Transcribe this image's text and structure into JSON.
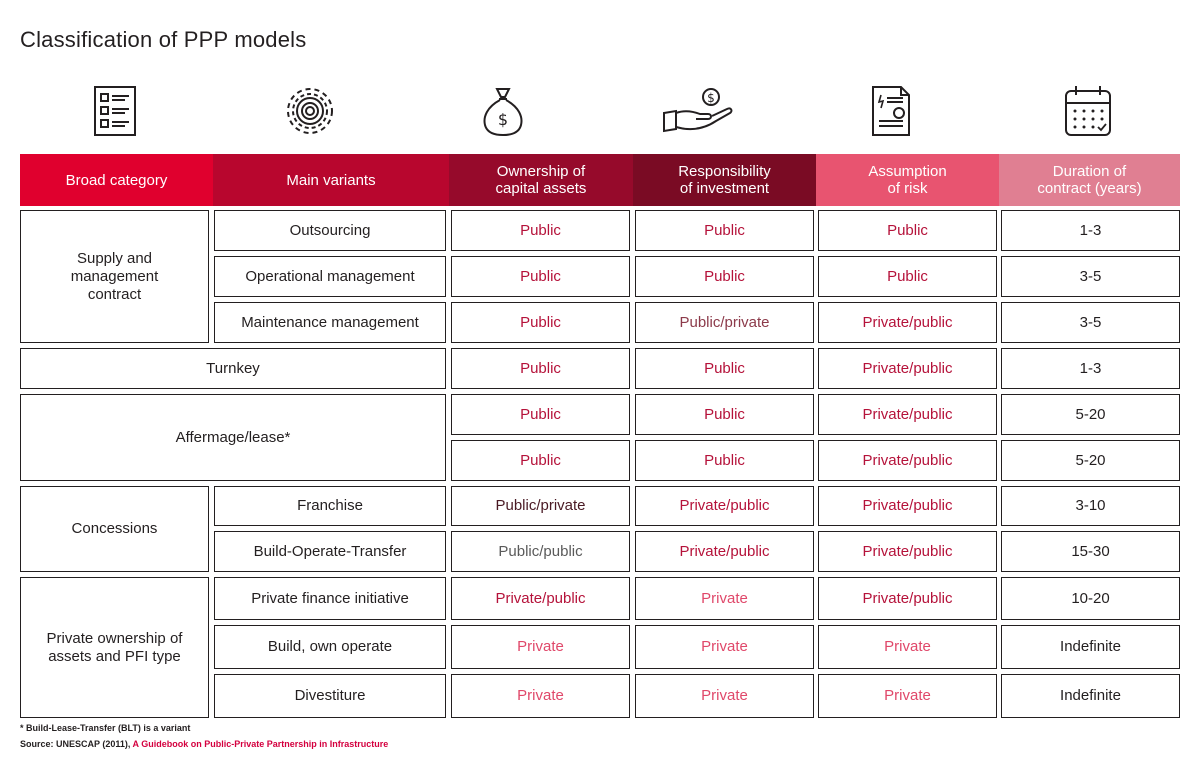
{
  "title": "Classification of PPP models",
  "chart_data": {
    "type": "table",
    "title": "Classification of PPP models",
    "columns": [
      {
        "label": "Broad category",
        "color": "#e0002e"
      },
      {
        "label": "Main variants",
        "color": "#b8062e"
      },
      {
        "label": "Ownership of\ncapital assets",
        "color": "#960a2b"
      },
      {
        "label": "Responsibility\nof investment",
        "color": "#7a0b24"
      },
      {
        "label": "Assumption\nof risk",
        "color": "#e85470"
      },
      {
        "label": "Duration of\ncontract (years)",
        "color": "#e07f92"
      }
    ],
    "icons": [
      "checklist-icon",
      "gear-icon",
      "money-bag-icon",
      "hand-dollar-icon",
      "invoice-icon",
      "calendar-icon"
    ],
    "categories": [
      "Supply and\nmanagement\ncontract",
      "Turnkey",
      "Affermage/lease*",
      "Concessions",
      "Private ownership of\nassets and PFI type"
    ],
    "rows": [
      {
        "variant": "Outsourcing",
        "ownership": "Public",
        "investment": "Public",
        "risk": "Public",
        "duration": "1-3"
      },
      {
        "variant": "Operational management",
        "ownership": "Public",
        "investment": "Public",
        "risk": "Public",
        "duration": "3-5"
      },
      {
        "variant": "Maintenance management",
        "ownership": "Public",
        "investment": "Public/private",
        "risk": "Private/public",
        "duration": "3-5"
      },
      {
        "variant": "",
        "ownership": "Public",
        "investment": "Public",
        "risk": "Private/public",
        "duration": "1-3"
      },
      {
        "variant": "",
        "ownership": "Public",
        "investment": "Public",
        "risk": "Private/public",
        "duration": "5-20"
      },
      {
        "variant": "",
        "ownership": "Public",
        "investment": "Public",
        "risk": "Private/public",
        "duration": "5-20"
      },
      {
        "variant": "Franchise",
        "ownership": "Public/private",
        "investment": "Private/public",
        "risk": "Private/public",
        "duration": "3-10"
      },
      {
        "variant": "Build-Operate-Transfer",
        "ownership": "Public/public",
        "investment": "Private/public",
        "risk": "Private/public",
        "duration": "15-30"
      },
      {
        "variant": "Private finance initiative",
        "ownership": "Private/public",
        "investment": "Private",
        "risk": "Private/public",
        "duration": "10-20"
      },
      {
        "variant": "Build, own operate",
        "ownership": "Private",
        "investment": "Private",
        "risk": "Private",
        "duration": "Indefinite"
      },
      {
        "variant": "Divestiture",
        "ownership": "Private",
        "investment": "Private",
        "risk": "Private",
        "duration": "Indefinite"
      }
    ]
  },
  "footnote": "* Build-Lease-Transfer (BLT) is a variant",
  "source": {
    "prefix": "Source: UNESCAP (2011), ",
    "link": "A Guidebook on Public-Private Partnership in Infrastructure"
  }
}
